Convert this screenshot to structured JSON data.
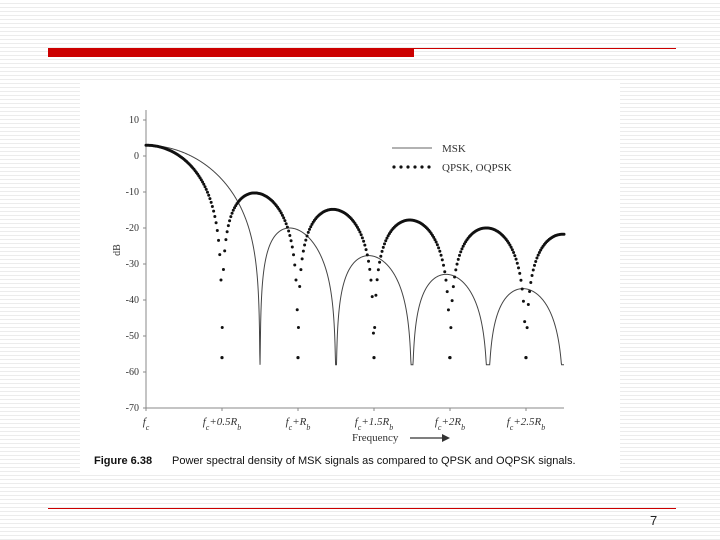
{
  "page_number": "7",
  "caption": {
    "label": "Figure 6.38",
    "text": "Power spectral density of MSK signals as compared to QPSK and OQPSK signals."
  },
  "chart_data": {
    "type": "line",
    "title": "",
    "xlabel": "Frequency",
    "ylabel": "dB",
    "ylim": [
      -70,
      10
    ],
    "yticks": [
      10,
      0,
      -10,
      -20,
      -30,
      -40,
      -50,
      -60,
      -70
    ],
    "xlim": [
      0,
      2.75
    ],
    "xticks": [
      {
        "value": 0,
        "label": "f_c"
      },
      {
        "value": 0.5,
        "label": "f_c+0.5R_b"
      },
      {
        "value": 1.0,
        "label": "f_c+R_b"
      },
      {
        "value": 1.5,
        "label": "f_c+1.5R_b"
      },
      {
        "value": 2.0,
        "label": "f_c+2R_b"
      },
      {
        "value": 2.5,
        "label": "f_c+2.5R_b"
      }
    ],
    "legend": {
      "position": "top-right"
    },
    "series": [
      {
        "name": "MSK",
        "style": "solid",
        "color": "#444444",
        "zeros_at": [
          0.75,
          1.25,
          1.75,
          2.25,
          2.75
        ],
        "floor_db": -58
      },
      {
        "name": "QPSK, OQPSK",
        "style": "dotted",
        "color": "#111111",
        "zeros_at": [
          0.5,
          1.0,
          1.5,
          2.0,
          2.5
        ],
        "floor_db": -56
      }
    ]
  }
}
